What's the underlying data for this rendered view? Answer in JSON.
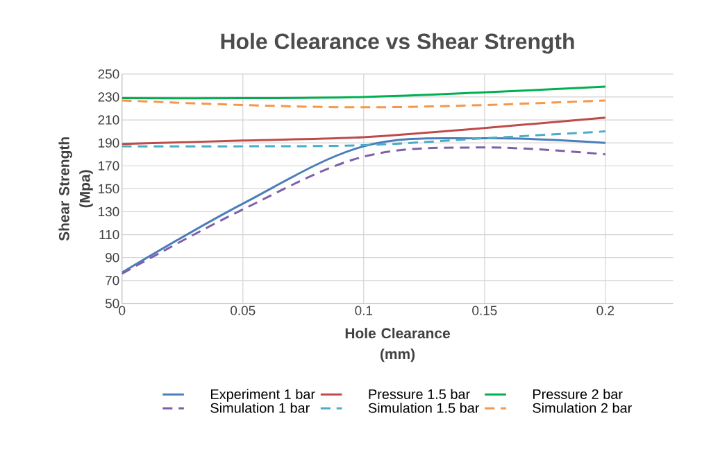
{
  "chart_data": {
    "type": "line",
    "title": "Hole Clearance vs Shear Strength",
    "xlabel": "Hole Clearance (mm)",
    "ylabel": "Shear Strength (Mpa)",
    "x": [
      0,
      0.05,
      0.1,
      0.15,
      0.2
    ],
    "series": [
      {
        "name": "Experiment 1 bar",
        "color": "#4a7ebb",
        "values": [
          77,
          137,
          187,
          194,
          190
        ],
        "line_style": "solid"
      },
      {
        "name": "Pressure 1.5 bar",
        "color": "#be4b48",
        "values": [
          189,
          192,
          195,
          203,
          212
        ],
        "line_style": "solid"
      },
      {
        "name": "Pressure 2 bar",
        "color": "#00b050",
        "values": [
          229,
          229,
          230,
          234,
          239
        ],
        "line_style": "solid"
      },
      {
        "name": "Simulation 1 bar",
        "color": "#7f5fa9",
        "values": [
          76,
          132,
          178,
          186,
          180
        ],
        "line_style": "dashed"
      },
      {
        "name": "Simulation 1.5 bar",
        "color": "#4bacc6",
        "values": [
          187,
          187,
          188,
          194,
          200
        ],
        "line_style": "dashed"
      },
      {
        "name": "Simulation 2 bar",
        "color": "#f79646",
        "values": [
          227,
          223,
          221,
          223,
          227
        ],
        "line_style": "dashed"
      }
    ],
    "xlim": [
      0,
      0.228
    ],
    "ylim": [
      50,
      250
    ],
    "xticks": [
      0,
      0.05,
      0.1,
      0.15,
      0.2
    ],
    "yticks": [
      50,
      70,
      90,
      110,
      130,
      150,
      170,
      190,
      210,
      230,
      250
    ],
    "grid": true,
    "legend": "bottom",
    "marker": "none"
  }
}
